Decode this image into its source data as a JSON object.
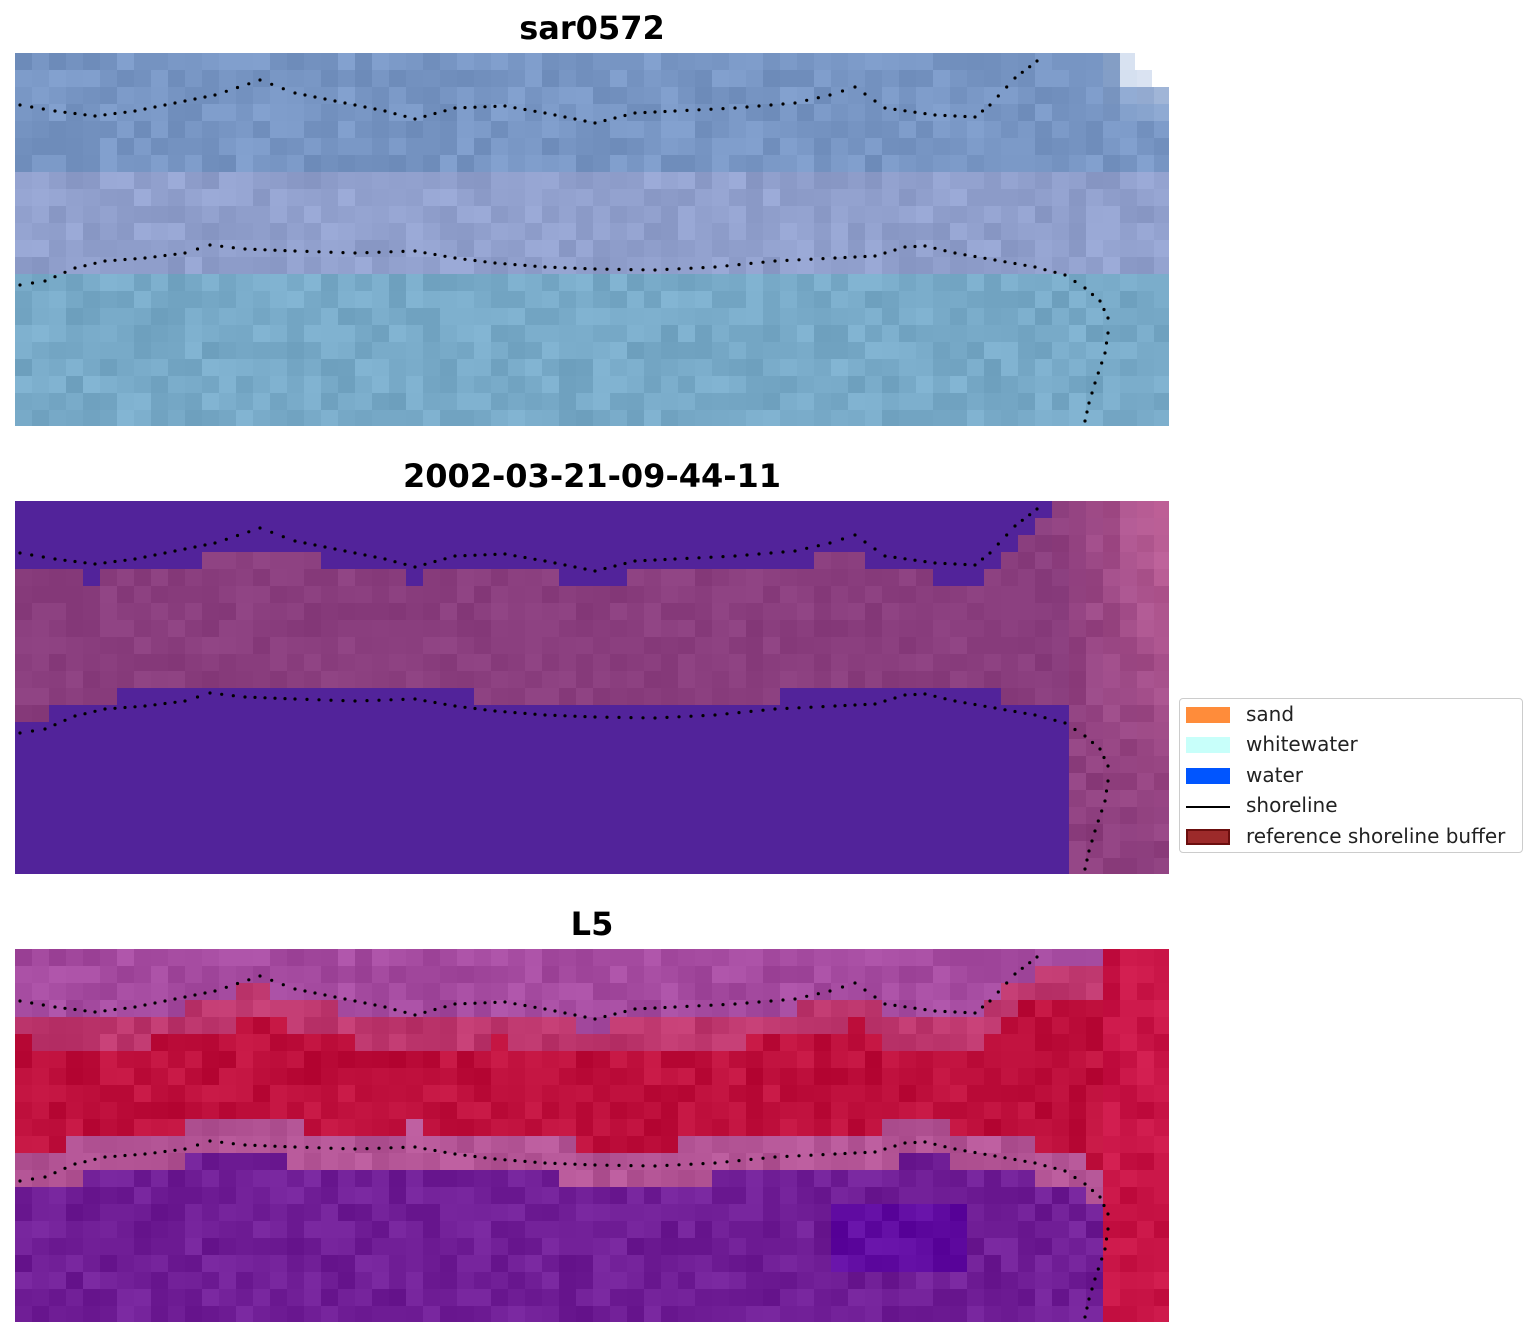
{
  "panels": [
    {
      "title": "sar0572",
      "kind": "rgb"
    },
    {
      "title": "2002-03-21-09-44-11",
      "kind": "classified"
    },
    {
      "title": "L5",
      "kind": "index"
    }
  ],
  "legend": {
    "items": [
      {
        "label": "sand",
        "type": "patch",
        "color": "#ff8c3a"
      },
      {
        "label": "whitewater",
        "type": "patch",
        "color": "#c8fffa"
      },
      {
        "label": "water",
        "type": "patch",
        "color": "#0055ff"
      },
      {
        "label": "shoreline",
        "type": "line",
        "color": "#000000"
      },
      {
        "label": "reference shoreline buffer",
        "type": "patch",
        "color": "#9c2a2a",
        "edge": "#6b0e0e"
      }
    ]
  },
  "colors": {
    "rgb_base": "#7f9fc6",
    "classified_water": "#52239a",
    "classified_buffer": "#8a3e7e",
    "index_low": "#6f1a9a",
    "index_high": "#c4073a",
    "shoreline_dots": "#000000"
  }
}
